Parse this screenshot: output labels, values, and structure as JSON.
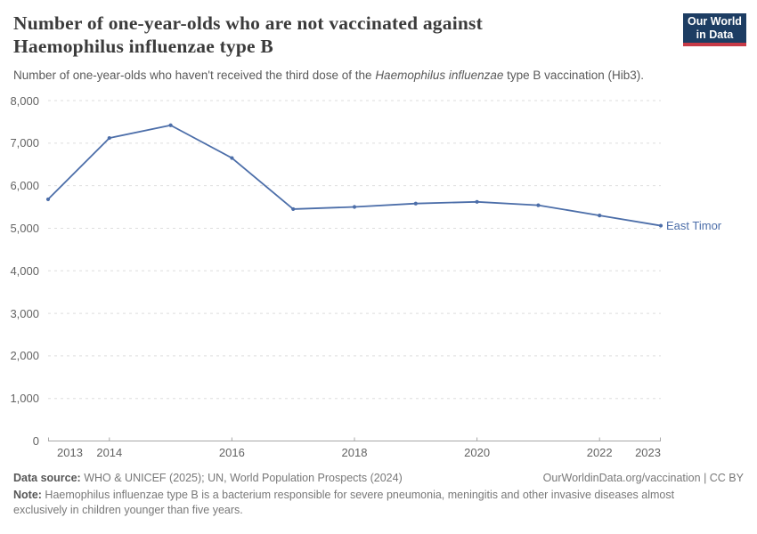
{
  "header": {
    "title_lines": [
      "Number of one-year-olds who are not vaccinated against",
      "Haemophilus influenzae type B"
    ],
    "subtitle": {
      "pre": "Number of one-year-olds who haven't received the third dose of the ",
      "italic": "Haemophilus influenzae",
      "post": " type B vaccination (Hib3)."
    },
    "logo": {
      "line1": "Our World",
      "line2": "in Data"
    }
  },
  "colors": {
    "series": "#4c6ea9",
    "grid": "#dedede",
    "axis": "#a8a8a8",
    "tick_label": "#636363",
    "logo_bg": "#1d3d63",
    "logo_bar": "#c73a47"
  },
  "chart_data": {
    "type": "line",
    "title": "Number of one-year-olds who are not vaccinated against Haemophilus influenzae type B",
    "xlabel": "",
    "ylabel": "",
    "x": [
      2013,
      2014,
      2015,
      2016,
      2017,
      2018,
      2019,
      2020,
      2021,
      2022,
      2023
    ],
    "series": [
      {
        "name": "East Timor",
        "values": [
          5680,
          7120,
          7420,
          6650,
          5450,
          5500,
          5580,
          5620,
          5540,
          5300,
          5060
        ]
      }
    ],
    "ylim": [
      0,
      8000
    ],
    "y_ticks": [
      0,
      1000,
      2000,
      3000,
      4000,
      5000,
      6000,
      7000,
      8000
    ],
    "x_tick_labels": [
      2013,
      2014,
      2016,
      2018,
      2020,
      2022,
      2023
    ],
    "grid": "horizontal-dashed",
    "legend": "end-of-line-label"
  },
  "footer": {
    "datasource_label": "Data source:",
    "datasource_text": " WHO & UNICEF (2025); UN, World Population Prospects (2024)",
    "credit": "OurWorldinData.org/vaccination | CC BY",
    "note_label": "Note:",
    "note_line1": " Haemophilus influenzae type B is a bacterium responsible for severe pneumonia, meningitis and other invasive diseases almost",
    "note_line2": "exclusively in children younger than five years."
  }
}
